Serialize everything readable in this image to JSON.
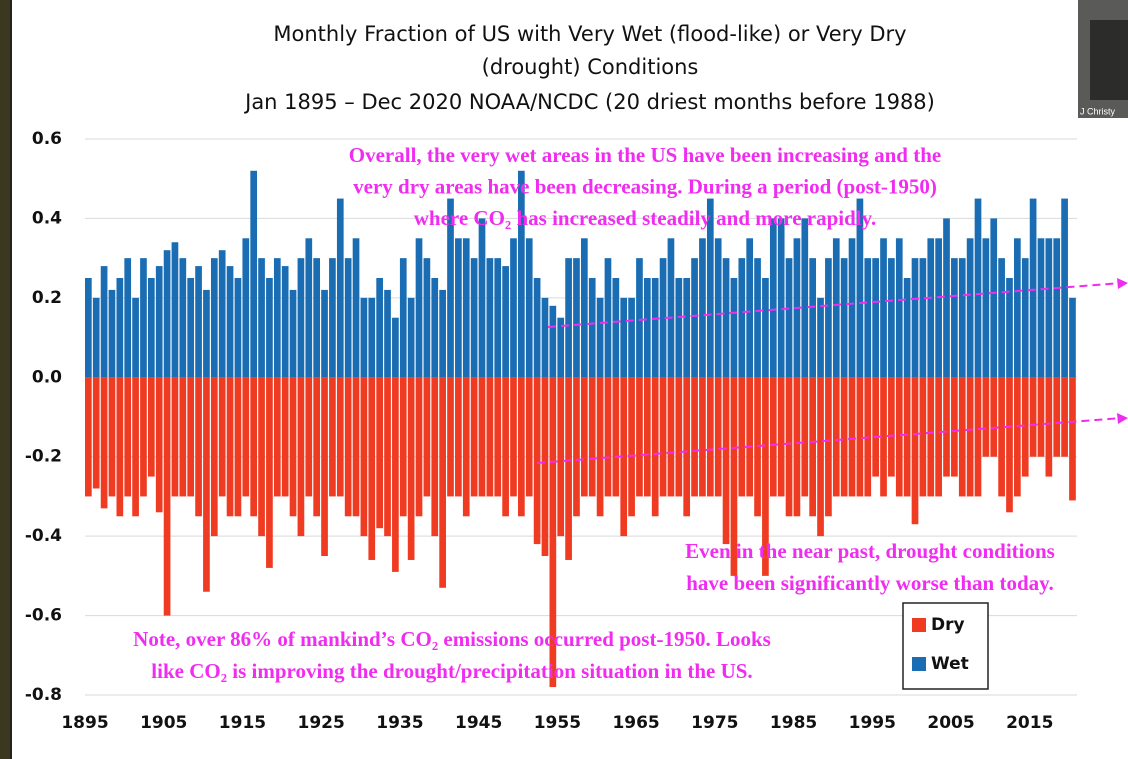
{
  "chart_data": {
    "type": "bar",
    "title": [
      "Monthly Fraction of US with Very Wet (flood-like) or Very Dry",
      "(drought) Conditions"
    ],
    "subtitle": "Jan 1895 – Dec 2020 NOAA/NCDC (20 driest months before 1988)",
    "x": [
      1895,
      1896,
      1897,
      1898,
      1899,
      1900,
      1901,
      1902,
      1903,
      1904,
      1905,
      1906,
      1907,
      1908,
      1909,
      1910,
      1911,
      1912,
      1913,
      1914,
      1915,
      1916,
      1917,
      1918,
      1919,
      1920,
      1921,
      1922,
      1923,
      1924,
      1925,
      1926,
      1927,
      1928,
      1929,
      1930,
      1931,
      1932,
      1933,
      1934,
      1935,
      1936,
      1937,
      1938,
      1939,
      1940,
      1941,
      1942,
      1943,
      1944,
      1945,
      1946,
      1947,
      1948,
      1949,
      1950,
      1951,
      1952,
      1953,
      1954,
      1955,
      1956,
      1957,
      1958,
      1959,
      1960,
      1961,
      1962,
      1963,
      1964,
      1965,
      1966,
      1967,
      1968,
      1969,
      1970,
      1971,
      1972,
      1973,
      1974,
      1975,
      1976,
      1977,
      1978,
      1979,
      1980,
      1981,
      1982,
      1983,
      1984,
      1985,
      1986,
      1987,
      1988,
      1989,
      1990,
      1991,
      1992,
      1993,
      1994,
      1995,
      1996,
      1997,
      1998,
      1999,
      2000,
      2001,
      2002,
      2003,
      2004,
      2005,
      2006,
      2007,
      2008,
      2009,
      2010,
      2011,
      2012,
      2013,
      2014,
      2015,
      2016,
      2017,
      2018,
      2019,
      2020
    ],
    "series": [
      {
        "name": "Dry",
        "color": "#ef3b22",
        "values": [
          -0.3,
          -0.28,
          -0.33,
          -0.3,
          -0.35,
          -0.3,
          -0.35,
          -0.3,
          -0.25,
          -0.34,
          -0.6,
          -0.3,
          -0.3,
          -0.3,
          -0.35,
          -0.54,
          -0.4,
          -0.3,
          -0.35,
          -0.35,
          -0.3,
          -0.35,
          -0.4,
          -0.48,
          -0.3,
          -0.3,
          -0.35,
          -0.4,
          -0.3,
          -0.35,
          -0.45,
          -0.3,
          -0.3,
          -0.35,
          -0.35,
          -0.4,
          -0.46,
          -0.38,
          -0.4,
          -0.49,
          -0.35,
          -0.46,
          -0.35,
          -0.3,
          -0.4,
          -0.53,
          -0.3,
          -0.3,
          -0.35,
          -0.3,
          -0.3,
          -0.3,
          -0.3,
          -0.35,
          -0.3,
          -0.35,
          -0.3,
          -0.42,
          -0.45,
          -0.78,
          -0.4,
          -0.46,
          -0.35,
          -0.3,
          -0.3,
          -0.35,
          -0.3,
          -0.3,
          -0.4,
          -0.35,
          -0.3,
          -0.3,
          -0.35,
          -0.3,
          -0.3,
          -0.3,
          -0.35,
          -0.3,
          -0.3,
          -0.3,
          -0.3,
          -0.42,
          -0.5,
          -0.3,
          -0.3,
          -0.35,
          -0.5,
          -0.3,
          -0.3,
          -0.35,
          -0.35,
          -0.3,
          -0.35,
          -0.4,
          -0.35,
          -0.3,
          -0.3,
          -0.3,
          -0.3,
          -0.3,
          -0.25,
          -0.3,
          -0.25,
          -0.3,
          -0.3,
          -0.37,
          -0.3,
          -0.3,
          -0.3,
          -0.25,
          -0.25,
          -0.3,
          -0.3,
          -0.3,
          -0.2,
          -0.2,
          -0.3,
          -0.34,
          -0.3,
          -0.25,
          -0.2,
          -0.2,
          -0.25,
          -0.2,
          -0.2,
          -0.31
        ]
      },
      {
        "name": "Wet",
        "color": "#1a6db3",
        "values": [
          0.25,
          0.2,
          0.28,
          0.22,
          0.25,
          0.3,
          0.2,
          0.3,
          0.25,
          0.28,
          0.32,
          0.34,
          0.3,
          0.25,
          0.28,
          0.22,
          0.3,
          0.32,
          0.28,
          0.25,
          0.35,
          0.52,
          0.3,
          0.25,
          0.3,
          0.28,
          0.22,
          0.3,
          0.35,
          0.3,
          0.22,
          0.3,
          0.45,
          0.3,
          0.35,
          0.2,
          0.2,
          0.25,
          0.22,
          0.15,
          0.3,
          0.2,
          0.35,
          0.3,
          0.25,
          0.22,
          0.45,
          0.35,
          0.35,
          0.3,
          0.4,
          0.3,
          0.3,
          0.28,
          0.35,
          0.52,
          0.35,
          0.25,
          0.2,
          0.18,
          0.15,
          0.3,
          0.3,
          0.35,
          0.25,
          0.2,
          0.3,
          0.25,
          0.2,
          0.2,
          0.3,
          0.25,
          0.25,
          0.3,
          0.35,
          0.25,
          0.25,
          0.3,
          0.35,
          0.45,
          0.35,
          0.3,
          0.25,
          0.3,
          0.35,
          0.3,
          0.25,
          0.4,
          0.4,
          0.3,
          0.35,
          0.4,
          0.3,
          0.2,
          0.3,
          0.35,
          0.3,
          0.35,
          0.45,
          0.3,
          0.3,
          0.35,
          0.3,
          0.35,
          0.25,
          0.3,
          0.3,
          0.35,
          0.35,
          0.4,
          0.3,
          0.3,
          0.35,
          0.45,
          0.35,
          0.4,
          0.3,
          0.25,
          0.35,
          0.3,
          0.45,
          0.35,
          0.35,
          0.35,
          0.45,
          0.2
        ]
      }
    ],
    "xlim": [
      1895,
      2021
    ],
    "xticks": [
      1895,
      1905,
      1915,
      1925,
      1935,
      1945,
      1955,
      1965,
      1975,
      1985,
      1995,
      2005,
      2015
    ],
    "ylim": [
      -0.8,
      0.6
    ],
    "yticks": [
      0.6,
      0.4,
      0.2,
      {
        "value": 0,
        "label": "0.0"
      },
      -0.2,
      -0.4,
      -0.6,
      -0.8
    ],
    "grid": true,
    "legend": "lower right",
    "annotations": [
      {
        "lines": [
          "Overall, the very wet areas in the US have been increasing and the",
          "very dry areas have been decreasing. During a period (post-1950)",
          "where CO₂ has increased steadily and more rapidly."
        ]
      },
      {
        "lines": [
          "Even in the near past, drought conditions",
          "have been significantly worse than today."
        ]
      },
      {
        "lines": [
          "Note, over 86% of mankind’s CO₂ emissions occurred post-1950. Looks",
          "like CO₂ is improving the drought/precipitation situation in the US."
        ]
      }
    ]
  },
  "presenter_label": "J Christy"
}
